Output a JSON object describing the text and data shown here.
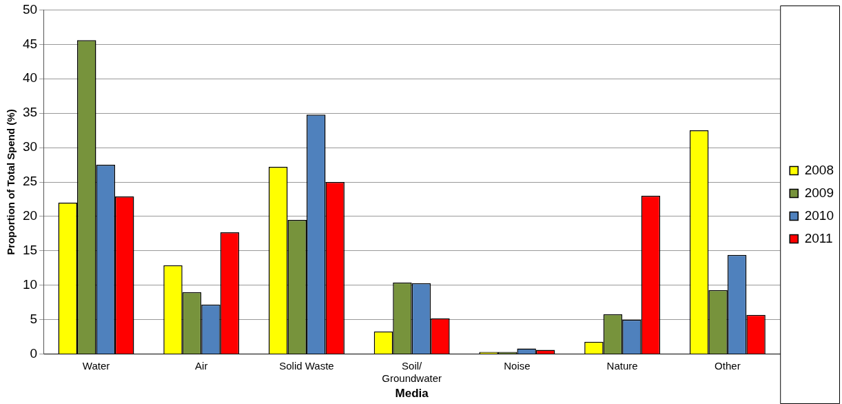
{
  "chart_data": {
    "type": "bar",
    "xlabel": "Media",
    "ylabel": "Proportion of Total Spend (%)",
    "categories": [
      "Water",
      "Air",
      "Solid Waste",
      "Soil/\nGroundwater",
      "Noise",
      "Nature",
      "Other"
    ],
    "series": [
      {
        "name": "2008",
        "color": "#ffff00",
        "values": [
          22.0,
          12.9,
          27.2,
          3.3,
          0.3,
          1.8,
          32.5
        ]
      },
      {
        "name": "2009",
        "color": "#77933c",
        "values": [
          45.6,
          9.0,
          19.5,
          10.4,
          0.3,
          5.8,
          9.3
        ]
      },
      {
        "name": "2010",
        "color": "#4f81bd",
        "values": [
          27.5,
          7.2,
          34.8,
          10.3,
          0.8,
          5.0,
          14.4
        ]
      },
      {
        "name": "2011",
        "color": "#ff0000",
        "values": [
          22.9,
          17.7,
          25.0,
          5.2,
          0.6,
          23.0,
          5.7
        ]
      }
    ],
    "ylim": [
      0,
      50
    ],
    "yticks": [
      0,
      5,
      10,
      15,
      20,
      25,
      30,
      35,
      40,
      45,
      50
    ],
    "grid": "y",
    "legend": "right"
  }
}
